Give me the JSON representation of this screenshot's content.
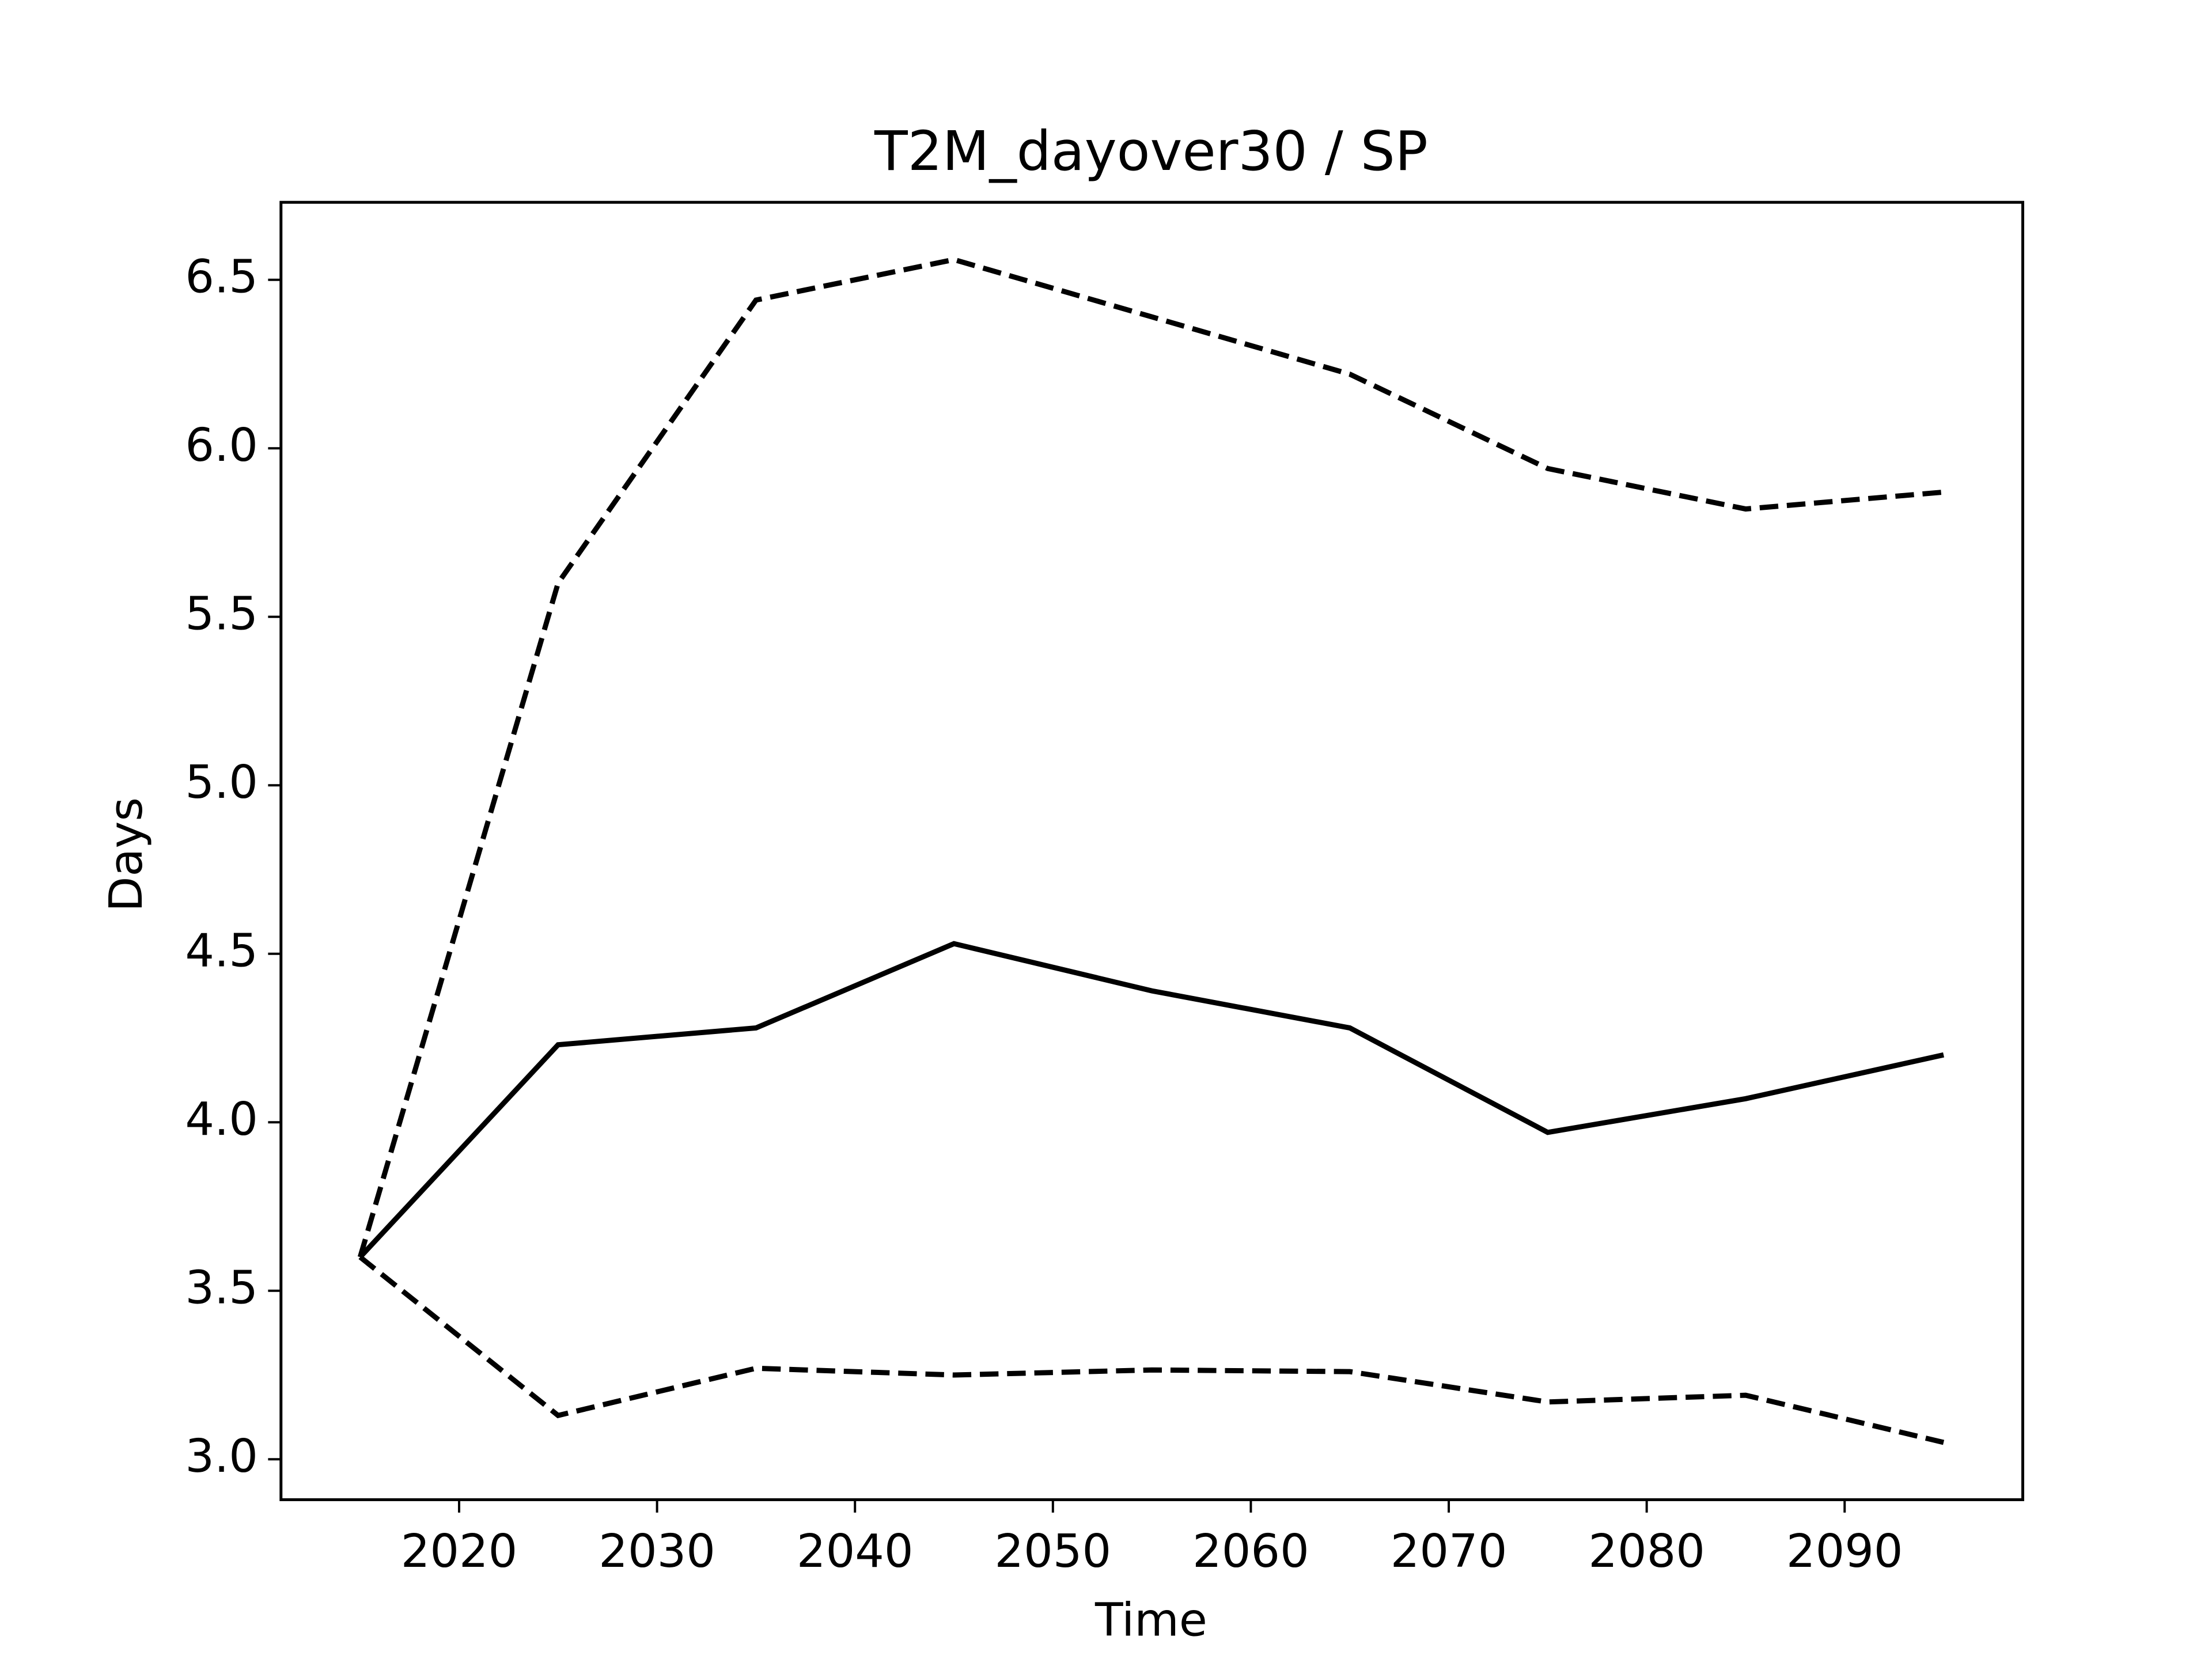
{
  "chart_data": {
    "type": "line",
    "title": "T2M_dayover30 / SP",
    "x_label": "Time",
    "y_label": "Days",
    "x": [
      2015,
      2025,
      2035,
      2045,
      2055,
      2065,
      2075,
      2085,
      2095
    ],
    "series": [
      {
        "color": "#000000",
        "dash": "solid",
        "values": [
          3.6,
          4.23,
          4.28,
          4.53,
          4.39,
          4.28,
          3.97,
          4.07,
          4.2
        ]
      },
      {
        "color": "#000000",
        "dash": "dashed",
        "values": [
          3.6,
          5.6,
          6.44,
          6.56,
          6.39,
          6.22,
          5.94,
          5.82,
          5.87
        ]
      },
      {
        "color": "#000000",
        "dash": "dashed",
        "values": [
          3.6,
          3.13,
          3.27,
          3.25,
          3.265,
          3.26,
          3.17,
          3.19,
          3.05
        ]
      }
    ],
    "xlim": [
      2011,
      2099
    ],
    "ylim": [
      2.88,
      6.73
    ],
    "xticks": [
      2020,
      2030,
      2040,
      2050,
      2060,
      2070,
      2080,
      2090
    ],
    "yticks": [
      {
        "value": 3,
        "label": "3.0"
      },
      3.5,
      {
        "value": 4,
        "label": "4.0"
      },
      4.5,
      {
        "value": 5,
        "label": "5.0"
      },
      5.5,
      {
        "value": 6,
        "label": "6.0"
      },
      6.5
    ],
    "grid": false
  }
}
